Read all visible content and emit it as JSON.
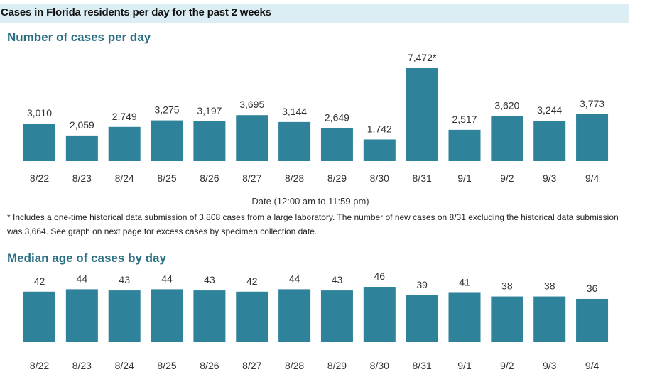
{
  "header": {
    "title": "Cases in Florida residents per day for the past 2 weeks"
  },
  "colors": {
    "bar": "#2e8299",
    "title": "#2a6f83",
    "header_band": "#dbeef4"
  },
  "chart_data": [
    {
      "type": "bar",
      "title": "Number of cases per day",
      "xlabel": "Date (12:00 am to 11:59 pm)",
      "ylabel": "",
      "ylim": [
        0,
        7472
      ],
      "grid": false,
      "categories": [
        "8/22",
        "8/23",
        "8/24",
        "8/25",
        "8/26",
        "8/27",
        "8/28",
        "8/29",
        "8/30",
        "8/31",
        "9/1",
        "9/2",
        "9/3",
        "9/4"
      ],
      "values": [
        3010,
        2059,
        2749,
        3275,
        3197,
        3695,
        3144,
        2649,
        1742,
        7472,
        2517,
        3620,
        3244,
        3773
      ],
      "value_labels": [
        "3,010",
        "2,059",
        "2,749",
        "3,275",
        "3,197",
        "3,695",
        "3,144",
        "2,649",
        "1,742",
        "7,472*",
        "2,517",
        "3,620",
        "3,244",
        "3,773"
      ]
    },
    {
      "type": "bar",
      "title": "Median age of cases by day",
      "xlabel": "",
      "ylabel": "",
      "ylim": [
        0,
        46
      ],
      "grid": false,
      "categories": [
        "8/22",
        "8/23",
        "8/24",
        "8/25",
        "8/26",
        "8/27",
        "8/28",
        "8/29",
        "8/30",
        "8/31",
        "9/1",
        "9/2",
        "9/3",
        "9/4"
      ],
      "values": [
        42,
        44,
        43,
        44,
        43,
        42,
        44,
        43,
        46,
        39,
        41,
        38,
        38,
        36
      ],
      "value_labels": [
        "42",
        "44",
        "43",
        "44",
        "43",
        "42",
        "44",
        "43",
        "46",
        "39",
        "41",
        "38",
        "38",
        "36"
      ]
    }
  ],
  "footnote": "* Includes a one-time historical data submission of 3,808 cases from a large laboratory. The number of new cases on 8/31 excluding the historical data submission was 3,664. See graph on next page for excess cases by specimen collection date."
}
